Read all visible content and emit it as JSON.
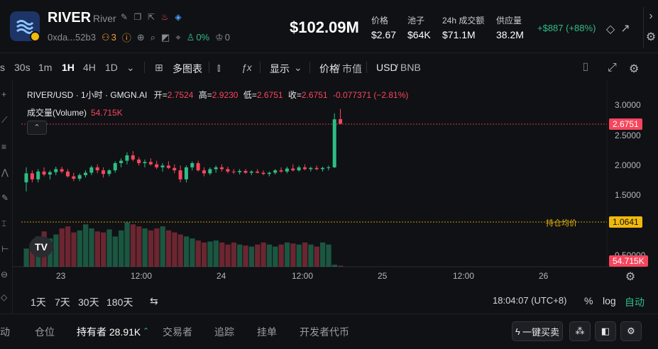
{
  "header": {
    "token_symbol": "RIVER",
    "token_name": "River",
    "address": "0xda...52b3",
    "holders_count": "3",
    "percent": "0%",
    "crown_count": "0",
    "market_cap": "$102.09M",
    "stats": [
      {
        "label": "价格",
        "value": "$2.67"
      },
      {
        "label": "池子",
        "value": "$64K"
      },
      {
        "label": "24h 成交额",
        "value": "$71.1M"
      },
      {
        "label": "供应量",
        "value": "38.2M"
      }
    ],
    "change": "+$887 (+88%)"
  },
  "toolbar": {
    "intervals": [
      "s",
      "30s",
      "1m",
      "1H",
      "4H",
      "1D"
    ],
    "active_interval": "1H",
    "multi_chart": "多图表",
    "display": "显示",
    "price_label": "价格",
    "mcap_label": "市值",
    "usd_label": "USD",
    "bnb_label": "BNB"
  },
  "chart": {
    "symbol_line": "RIVER/USD · 1小时 · GMGN.AI",
    "open_label": "开=",
    "open_value": "2.7524",
    "high_label": "高=",
    "high_value": "2.9230",
    "low_label": "低=",
    "low_value": "2.6751",
    "close_label": "收=",
    "close_value": "2.6751",
    "change_value": "-0.077371 (−2.81%)",
    "volume_label": "成交量(Volume)",
    "volume_value": "54.715K",
    "current_price_tag": "2.6751",
    "avg_price_tag": "1.0641",
    "avg_price_label": "持仓均价",
    "volume_tag": "54.715K",
    "y_ticks": [
      "3.0000",
      "2.5000",
      "2.0000",
      "1.5000",
      "0.50000"
    ],
    "x_ticks": [
      "23",
      "12:00",
      "24",
      "12:00",
      "25",
      "12:00",
      "26"
    ]
  },
  "chart_data": {
    "type": "candlestick",
    "ylim": [
      0.5,
      3.1
    ],
    "candles": [
      [
        1.7,
        1.95,
        1.55,
        1.85
      ],
      [
        1.85,
        1.9,
        1.7,
        1.75
      ],
      [
        1.75,
        1.92,
        1.7,
        1.88
      ],
      [
        1.88,
        1.95,
        1.8,
        1.83
      ],
      [
        1.83,
        1.9,
        1.75,
        1.87
      ],
      [
        1.87,
        1.96,
        1.82,
        1.92
      ],
      [
        1.92,
        1.96,
        1.85,
        1.88
      ],
      [
        1.88,
        1.92,
        1.78,
        1.8
      ],
      [
        1.8,
        1.86,
        1.72,
        1.76
      ],
      [
        1.76,
        1.85,
        1.72,
        1.82
      ],
      [
        1.82,
        1.9,
        1.78,
        1.86
      ],
      [
        1.86,
        1.98,
        1.82,
        1.95
      ],
      [
        1.95,
        2.0,
        1.85,
        1.9
      ],
      [
        1.9,
        1.95,
        1.78,
        1.84
      ],
      [
        1.84,
        1.92,
        1.8,
        1.9
      ],
      [
        1.9,
        2.05,
        1.86,
        2.02
      ],
      [
        2.02,
        2.1,
        1.95,
        2.06
      ],
      [
        2.06,
        2.2,
        2.0,
        2.15
      ],
      [
        2.15,
        2.22,
        2.05,
        2.08
      ],
      [
        2.08,
        2.12,
        1.98,
        2.02
      ],
      [
        2.02,
        2.08,
        1.95,
        2.04
      ],
      [
        2.04,
        2.1,
        1.98,
        2.0
      ],
      [
        2.0,
        2.06,
        1.92,
        1.95
      ],
      [
        1.95,
        2.02,
        1.88,
        1.98
      ],
      [
        1.98,
        2.05,
        1.92,
        1.94
      ],
      [
        1.94,
        2.0,
        1.85,
        1.9
      ],
      [
        1.9,
        1.98,
        1.7,
        1.75
      ],
      [
        1.75,
        1.98,
        1.7,
        1.95
      ],
      [
        1.95,
        2.05,
        1.9,
        2.02
      ],
      [
        2.02,
        2.06,
        1.88,
        1.9
      ],
      [
        1.9,
        1.95,
        1.8,
        1.85
      ],
      [
        1.85,
        1.95,
        1.82,
        1.92
      ],
      [
        1.92,
        1.98,
        1.86,
        1.95
      ],
      [
        1.95,
        2.0,
        1.88,
        1.92
      ],
      [
        1.92,
        1.96,
        1.85,
        1.88
      ],
      [
        1.88,
        1.92,
        1.84,
        1.87
      ],
      [
        1.87,
        1.92,
        1.83,
        1.89
      ],
      [
        1.89,
        1.92,
        1.84,
        1.86
      ],
      [
        1.86,
        1.9,
        1.82,
        1.88
      ],
      [
        1.88,
        1.92,
        1.85,
        1.86
      ],
      [
        1.86,
        1.9,
        1.82,
        1.84
      ],
      [
        1.84,
        1.88,
        1.8,
        1.86
      ],
      [
        1.86,
        1.92,
        1.83,
        1.9
      ],
      [
        1.9,
        1.95,
        1.86,
        1.88
      ],
      [
        1.88,
        1.96,
        1.85,
        1.93
      ],
      [
        1.93,
        2.0,
        1.88,
        1.9
      ],
      [
        1.9,
        1.98,
        1.88,
        1.95
      ],
      [
        1.95,
        2.0,
        1.9,
        1.92
      ],
      [
        1.92,
        1.96,
        1.88,
        1.94
      ],
      [
        1.94,
        1.98,
        1.9,
        1.92
      ],
      [
        1.92,
        1.96,
        1.88,
        1.94
      ],
      [
        1.94,
        1.98,
        1.9,
        1.95
      ],
      [
        1.95,
        2.85,
        1.94,
        2.75
      ],
      [
        2.7524,
        2.923,
        2.6751,
        2.6751
      ]
    ],
    "volumes": [
      18,
      22,
      30,
      35,
      28,
      32,
      38,
      40,
      34,
      36,
      42,
      38,
      35,
      34,
      37,
      30,
      36,
      44,
      42,
      40,
      38,
      36,
      38,
      40,
      36,
      34,
      32,
      30,
      28,
      26,
      24,
      25,
      26,
      24,
      22,
      24,
      22,
      21,
      20,
      22,
      24,
      22,
      20,
      22,
      24,
      23,
      22,
      24,
      22,
      20,
      24,
      22,
      2,
      1
    ]
  },
  "range_bar": {
    "ranges": [
      "1天",
      "7天",
      "30天",
      "180天"
    ],
    "time": "18:04:07 (UTC+8)",
    "percent": "%",
    "log": "log",
    "auto": "自动"
  },
  "tabs": {
    "items": [
      "动",
      "仓位",
      "持有者 28.91K",
      "交易者",
      "追踪",
      "挂单",
      "开发者代币"
    ],
    "active": "持有者 28.91K",
    "buy_button": "一键买卖"
  },
  "colors": {
    "up": "#2ebd85",
    "down": "#f6465d",
    "accent_yellow": "#f0b90b",
    "bg": "#101114"
  }
}
